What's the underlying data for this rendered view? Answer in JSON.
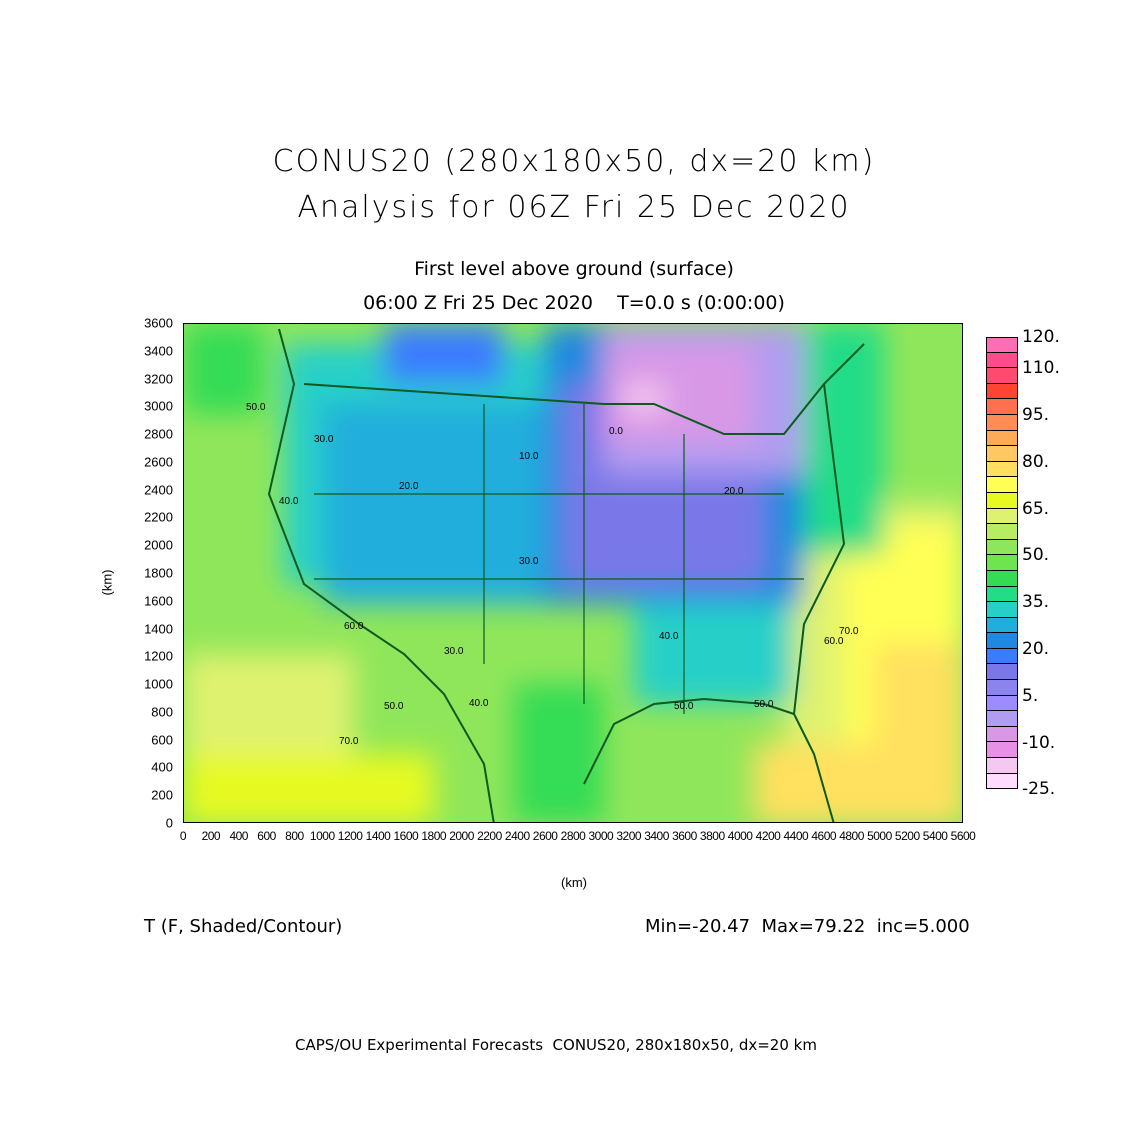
{
  "header": {
    "title_line1": "CONUS20 (280x180x50, dx=20 km)",
    "title_line2": "Analysis for 06Z Fri 25 Dec 2020",
    "level": "First level above ground (surface)",
    "time": "06:00 Z Fri 25 Dec 2020    T=0.0 s (0:00:00)"
  },
  "axes": {
    "xlabel": "(km)",
    "ylabel": "(km)",
    "xticks": [
      "0",
      "200",
      "400",
      "600",
      "800",
      "1000",
      "1200",
      "1400",
      "1600",
      "1800",
      "2000",
      "2200",
      "2400",
      "2600",
      "2800",
      "3000",
      "3200",
      "3400",
      "3600",
      "3800",
      "4000",
      "4200",
      "4400",
      "4600",
      "4800",
      "5000",
      "5200",
      "5400",
      "5600"
    ],
    "yticks": [
      "0",
      "200",
      "400",
      "600",
      "800",
      "1000",
      "1200",
      "1400",
      "1600",
      "1800",
      "2000",
      "2200",
      "2400",
      "2600",
      "2800",
      "3000",
      "3200",
      "3400",
      "3600"
    ]
  },
  "colorbar": {
    "labels": [
      {
        "text": "120.",
        "v": 120
      },
      {
        "text": "110.",
        "v": 110
      },
      {
        "text": "95.",
        "v": 95
      },
      {
        "text": "80.",
        "v": 80
      },
      {
        "text": "65.",
        "v": 65
      },
      {
        "text": "50.",
        "v": 50
      },
      {
        "text": "35.",
        "v": 35
      },
      {
        "text": "20.",
        "v": 20
      },
      {
        "text": "5.",
        "v": 5
      },
      {
        "text": "-10.",
        "v": -10
      },
      {
        "text": "-25.",
        "v": -25
      }
    ],
    "colors": [
      "#ff6eb4",
      "#ff4a8c",
      "#ff4a70",
      "#ff4433",
      "#ff7050",
      "#ff8c55",
      "#ffaa55",
      "#ffc862",
      "#ffe05e",
      "#ffff55",
      "#e6fa22",
      "#dff270",
      "#b8ec62",
      "#90e65a",
      "#6ee450",
      "#34dc55",
      "#22dc88",
      "#26d0c8",
      "#22aedc",
      "#2088e0",
      "#3a7cff",
      "#7a78e8",
      "#8c84ee",
      "#9c8cff",
      "#b09cf0",
      "#d898e6",
      "#e890e6",
      "#f4c8f0",
      "#ffdcff"
    ]
  },
  "contour_labels": [
    "50.0",
    "30.0",
    "40.0",
    "20.0",
    "10.0",
    "0.0",
    "60.0",
    "70.0",
    "50.0",
    "40.0",
    "30.0",
    "50.0",
    "60.0",
    "70.0",
    "30.0",
    "20.0",
    "50.0",
    "40.0"
  ],
  "footer": {
    "variable": "T (F, Shaded/Contour)",
    "stats": "Min=-20.47  Max=79.22  inc=5.000",
    "credit": "CAPS/OU Experimental Forecasts  CONUS20, 280x180x50, dx=20 km"
  }
}
